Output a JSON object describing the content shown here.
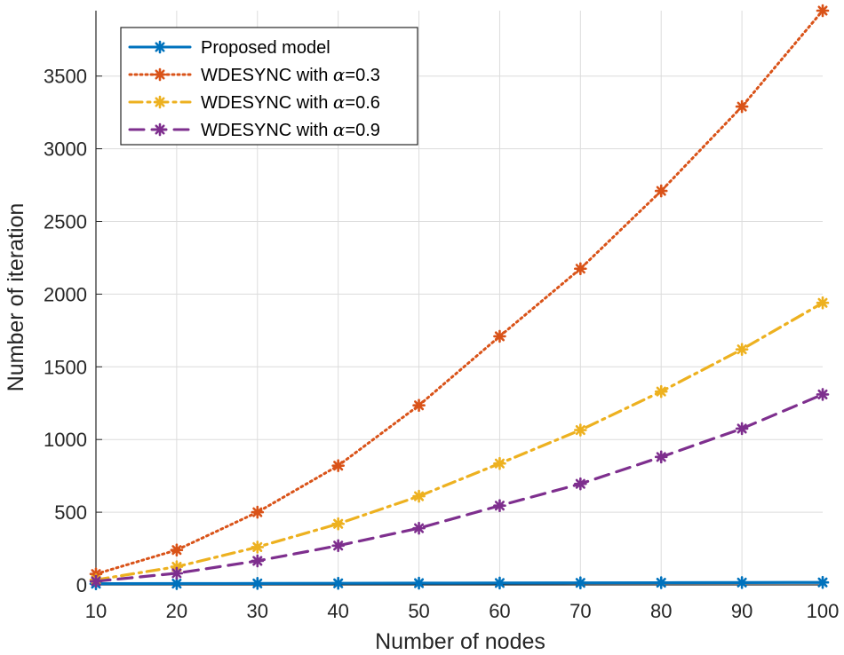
{
  "chart_data": {
    "type": "line",
    "title": "",
    "xlabel": "Number of nodes",
    "ylabel": "Number of iteration",
    "x": [
      10,
      20,
      30,
      40,
      50,
      60,
      70,
      80,
      90,
      100
    ],
    "xlim": [
      10,
      100
    ],
    "ylim": [
      0,
      3950
    ],
    "xticks": [
      "10",
      "20",
      "30",
      "40",
      "50",
      "60",
      "70",
      "80",
      "90",
      "100"
    ],
    "yticks": [
      "0",
      "500",
      "1000",
      "1500",
      "2000",
      "2500",
      "3000",
      "3500"
    ],
    "grid": true,
    "legend_position": "top-left",
    "series": [
      {
        "name": "Proposed model",
        "legend_prefix": "Proposed model",
        "legend_alpha": "",
        "legend_suffix": "",
        "color": "#0072BD",
        "style": "solid",
        "marker": "asterisk",
        "values": [
          8,
          9,
          10,
          11,
          12,
          13,
          14,
          15,
          16,
          17
        ]
      },
      {
        "name": "WDESYNC with α=0.3",
        "legend_prefix": "WDESYNC with ",
        "legend_alpha": "α",
        "legend_suffix": "=0.3",
        "color": "#D95319",
        "style": "dotted",
        "marker": "asterisk",
        "values": [
          75,
          240,
          500,
          820,
          1235,
          1710,
          2175,
          2710,
          3290,
          3950
        ]
      },
      {
        "name": "WDESYNC with α=0.6",
        "legend_prefix": "WDESYNC with ",
        "legend_alpha": "α",
        "legend_suffix": "=0.6",
        "color": "#EDB120",
        "style": "dashdot",
        "marker": "asterisk",
        "values": [
          35,
          125,
          260,
          420,
          610,
          835,
          1065,
          1330,
          1620,
          1940
        ]
      },
      {
        "name": "WDESYNC with α=0.9",
        "legend_prefix": "WDESYNC with ",
        "legend_alpha": "α",
        "legend_suffix": "=0.9",
        "color": "#7E2F8E",
        "style": "dashed",
        "marker": "asterisk",
        "values": [
          25,
          80,
          165,
          270,
          390,
          545,
          695,
          880,
          1075,
          1310
        ]
      }
    ]
  }
}
